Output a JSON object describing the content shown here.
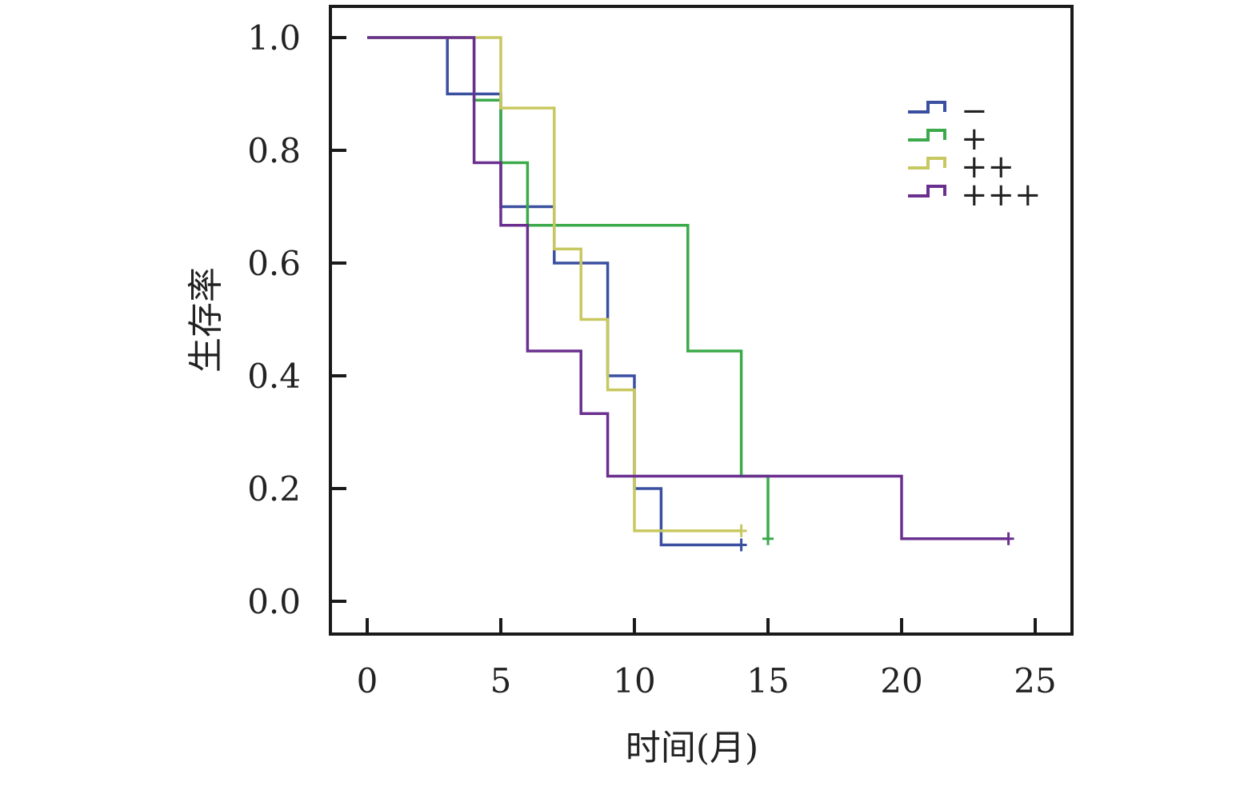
{
  "chart_data": {
    "type": "line",
    "subtype": "kaplan-meier step",
    "xlabel": "时间(月)",
    "ylabel": "生存率",
    "xlim": [
      0,
      25
    ],
    "ylim": [
      0,
      1
    ],
    "xticks": [
      "0",
      "5",
      "10",
      "15",
      "20",
      "25"
    ],
    "yticks": [
      "0.0",
      "0.2",
      "0.4",
      "0.6",
      "0.8",
      "1.0"
    ],
    "legend_position": "top-right",
    "series": [
      {
        "name": "−",
        "color": "#3a4fa0",
        "x": [
          0,
          3,
          5,
          7,
          9,
          10,
          11,
          14
        ],
        "y": [
          1.0,
          0.9,
          0.7,
          0.6,
          0.4,
          0.2,
          0.1,
          0.1
        ],
        "censor": [
          14
        ]
      },
      {
        "name": "+",
        "color": "#3aaa4a",
        "x": [
          0,
          4,
          5,
          6,
          12,
          14,
          15,
          15
        ],
        "y": [
          1.0,
          0.889,
          0.778,
          0.667,
          0.444,
          0.222,
          0.111,
          0.111
        ],
        "censor": [
          15
        ]
      },
      {
        "name": "++",
        "color": "#c8c860",
        "x": [
          0,
          5,
          7,
          8,
          9,
          10,
          14
        ],
        "y": [
          1.0,
          0.875,
          0.625,
          0.5,
          0.375,
          0.125,
          0.125
        ],
        "censor": [
          14
        ]
      },
      {
        "name": "+++",
        "color": "#6a2f8f",
        "x": [
          0,
          4,
          5,
          6,
          8,
          9,
          20,
          24
        ],
        "y": [
          1.0,
          0.778,
          0.667,
          0.444,
          0.333,
          0.222,
          0.111,
          0.111
        ],
        "censor": [
          24
        ]
      }
    ]
  }
}
